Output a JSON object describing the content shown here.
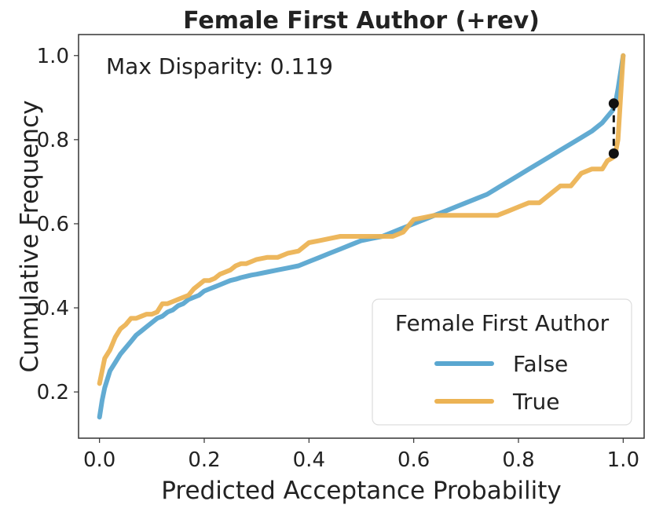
{
  "chart_data": {
    "type": "line",
    "title": "Female First Author (+rev)",
    "xlabel": "Predicted Acceptance Probability",
    "ylabel": "Cumulative Frequency",
    "xlim": [
      -0.04,
      1.04
    ],
    "ylim": [
      0.09,
      1.05
    ],
    "xticks": [
      0.0,
      0.2,
      0.4,
      0.6,
      0.8,
      1.0
    ],
    "xtick_labels": [
      "0.0",
      "0.2",
      "0.4",
      "0.6",
      "0.8",
      "1.0"
    ],
    "yticks": [
      0.2,
      0.4,
      0.6,
      0.8,
      1.0
    ],
    "ytick_labels": [
      "0.2",
      "0.4",
      "0.6",
      "0.8",
      "1.0"
    ],
    "grid": false,
    "annotation": "Max Disparity: 0.119",
    "disparity_marker": {
      "x": 0.982,
      "y_low": 0.767,
      "y_high": 0.886
    },
    "legend": {
      "title": "Female First Author",
      "position": "lower-right",
      "entries": [
        "False",
        "True"
      ]
    },
    "series": [
      {
        "name": "False",
        "color": "#5aa7d0",
        "x": [
          0.0,
          0.005,
          0.01,
          0.02,
          0.03,
          0.04,
          0.05,
          0.06,
          0.07,
          0.08,
          0.09,
          0.1,
          0.11,
          0.12,
          0.13,
          0.14,
          0.15,
          0.16,
          0.17,
          0.18,
          0.19,
          0.2,
          0.21,
          0.22,
          0.23,
          0.24,
          0.25,
          0.26,
          0.27,
          0.28,
          0.29,
          0.3,
          0.32,
          0.34,
          0.36,
          0.38,
          0.4,
          0.42,
          0.44,
          0.46,
          0.48,
          0.5,
          0.52,
          0.54,
          0.56,
          0.58,
          0.6,
          0.62,
          0.64,
          0.66,
          0.68,
          0.7,
          0.72,
          0.74,
          0.76,
          0.78,
          0.8,
          0.82,
          0.84,
          0.86,
          0.88,
          0.9,
          0.92,
          0.94,
          0.96,
          0.97,
          0.98,
          0.985,
          0.99,
          1.0
        ],
        "values": [
          0.14,
          0.18,
          0.21,
          0.25,
          0.27,
          0.29,
          0.305,
          0.32,
          0.335,
          0.345,
          0.355,
          0.365,
          0.375,
          0.38,
          0.39,
          0.395,
          0.405,
          0.41,
          0.42,
          0.425,
          0.43,
          0.44,
          0.445,
          0.45,
          0.455,
          0.46,
          0.465,
          0.468,
          0.472,
          0.475,
          0.478,
          0.48,
          0.485,
          0.49,
          0.495,
          0.5,
          0.51,
          0.52,
          0.53,
          0.54,
          0.55,
          0.56,
          0.565,
          0.57,
          0.58,
          0.59,
          0.6,
          0.61,
          0.62,
          0.63,
          0.64,
          0.65,
          0.66,
          0.67,
          0.685,
          0.7,
          0.715,
          0.73,
          0.745,
          0.76,
          0.775,
          0.79,
          0.805,
          0.82,
          0.84,
          0.855,
          0.87,
          0.886,
          0.92,
          1.0
        ]
      },
      {
        "name": "True",
        "color": "#ecb354",
        "x": [
          0.0,
          0.005,
          0.01,
          0.02,
          0.03,
          0.04,
          0.05,
          0.06,
          0.07,
          0.08,
          0.09,
          0.1,
          0.11,
          0.12,
          0.13,
          0.14,
          0.15,
          0.16,
          0.17,
          0.18,
          0.19,
          0.2,
          0.21,
          0.22,
          0.23,
          0.24,
          0.25,
          0.26,
          0.27,
          0.28,
          0.29,
          0.3,
          0.32,
          0.34,
          0.36,
          0.38,
          0.4,
          0.42,
          0.44,
          0.46,
          0.48,
          0.5,
          0.52,
          0.54,
          0.56,
          0.58,
          0.6,
          0.62,
          0.64,
          0.66,
          0.68,
          0.7,
          0.72,
          0.74,
          0.76,
          0.78,
          0.8,
          0.82,
          0.84,
          0.86,
          0.88,
          0.9,
          0.92,
          0.94,
          0.96,
          0.97,
          0.98,
          0.985,
          0.99,
          1.0
        ],
        "values": [
          0.22,
          0.25,
          0.28,
          0.3,
          0.33,
          0.35,
          0.36,
          0.375,
          0.375,
          0.38,
          0.385,
          0.385,
          0.39,
          0.41,
          0.41,
          0.415,
          0.42,
          0.425,
          0.43,
          0.445,
          0.455,
          0.465,
          0.465,
          0.47,
          0.48,
          0.485,
          0.49,
          0.5,
          0.505,
          0.505,
          0.51,
          0.515,
          0.52,
          0.52,
          0.53,
          0.535,
          0.555,
          0.56,
          0.565,
          0.57,
          0.57,
          0.57,
          0.57,
          0.57,
          0.57,
          0.58,
          0.61,
          0.615,
          0.62,
          0.62,
          0.62,
          0.62,
          0.62,
          0.62,
          0.62,
          0.63,
          0.64,
          0.65,
          0.65,
          0.67,
          0.69,
          0.69,
          0.72,
          0.73,
          0.73,
          0.75,
          0.757,
          0.767,
          0.8,
          1.0
        ]
      }
    ]
  }
}
